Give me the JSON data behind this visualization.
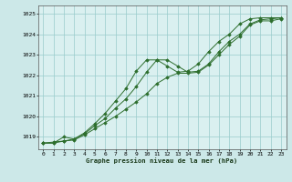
{
  "title": "Graphe pression niveau de la mer (hPa)",
  "bg_color": "#cce8e8",
  "plot_bg_color": "#daf0f0",
  "grid_color": "#99cccc",
  "line_color": "#2d6e2d",
  "marker_color": "#2d6e2d",
  "xlim": [
    -0.5,
    23.5
  ],
  "ylim": [
    1018.4,
    1025.4
  ],
  "yticks": [
    1019,
    1020,
    1021,
    1022,
    1023,
    1024,
    1025
  ],
  "xticks": [
    0,
    1,
    2,
    3,
    4,
    5,
    6,
    7,
    8,
    9,
    10,
    11,
    12,
    13,
    14,
    15,
    16,
    17,
    18,
    19,
    20,
    21,
    22,
    23
  ],
  "series": [
    [
      1018.7,
      1018.7,
      1018.8,
      1018.85,
      1019.1,
      1019.4,
      1019.7,
      1020.0,
      1020.35,
      1020.7,
      1021.1,
      1021.6,
      1021.9,
      1022.1,
      1022.1,
      1022.15,
      1022.5,
      1023.0,
      1023.5,
      1023.9,
      1024.45,
      1024.65,
      1024.65,
      1024.75
    ],
    [
      1018.7,
      1018.7,
      1019.0,
      1018.9,
      1019.15,
      1019.55,
      1019.9,
      1020.4,
      1020.85,
      1021.45,
      1022.15,
      1022.75,
      1022.75,
      1022.45,
      1022.15,
      1022.2,
      1022.55,
      1023.15,
      1023.65,
      1024.0,
      1024.5,
      1024.7,
      1024.75,
      1024.8
    ],
    [
      1018.7,
      1018.75,
      1018.8,
      1018.9,
      1019.2,
      1019.65,
      1020.15,
      1020.75,
      1021.35,
      1022.2,
      1022.75,
      1022.75,
      1022.45,
      1022.15,
      1022.2,
      1022.55,
      1023.15,
      1023.65,
      1024.0,
      1024.5,
      1024.75,
      1024.8,
      1024.8,
      1024.8
    ]
  ]
}
